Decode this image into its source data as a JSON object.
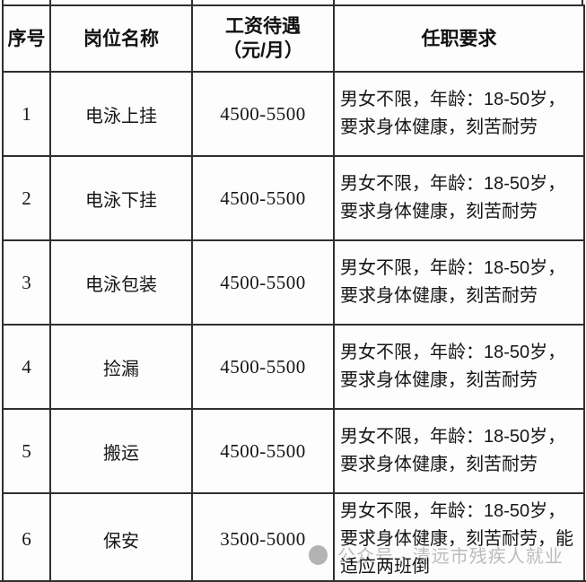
{
  "colors": {
    "background": "#fdfdfd",
    "border": "#2f2f2f",
    "text": "#161616",
    "watermark_text": "#bcbcbc",
    "watermark_logo": "#a6a6a6"
  },
  "table": {
    "columns": [
      {
        "label": "序号"
      },
      {
        "label": "岗位名称"
      },
      {
        "label": "工资待遇\n（元/月）"
      },
      {
        "label": "任职要求"
      }
    ],
    "rows": [
      {
        "index": "1",
        "position": "电泳上挂",
        "salary": "4500-5500",
        "requirements": "男女不限，年龄：18-50岁，要求身体健康，刻苦耐劳"
      },
      {
        "index": "2",
        "position": "电泳下挂",
        "salary": "4500-5500",
        "requirements": "男女不限，年龄：18-50岁，要求身体健康，刻苦耐劳"
      },
      {
        "index": "3",
        "position": "电泳包装",
        "salary": "4500-5500",
        "requirements": "男女不限，年龄：18-50岁，要求身体健康，刻苦耐劳"
      },
      {
        "index": "4",
        "position": "捡漏",
        "salary": "4500-5500",
        "requirements": "男女不限，年龄：18-50岁，要求身体健康，刻苦耐劳"
      },
      {
        "index": "5",
        "position": "搬运",
        "salary": "4500-5500",
        "requirements": "男女不限，年龄：18-50岁，要求身体健康，刻苦耐劳"
      },
      {
        "index": "6",
        "position": "保安",
        "salary": "3500-5000",
        "requirements": "男女不限，年龄：18-50岁，要求身体健康，刻苦耐劳，能适应两班倒"
      }
    ]
  },
  "watermark": {
    "text": "公众号 · 清远市残疾人就业"
  }
}
